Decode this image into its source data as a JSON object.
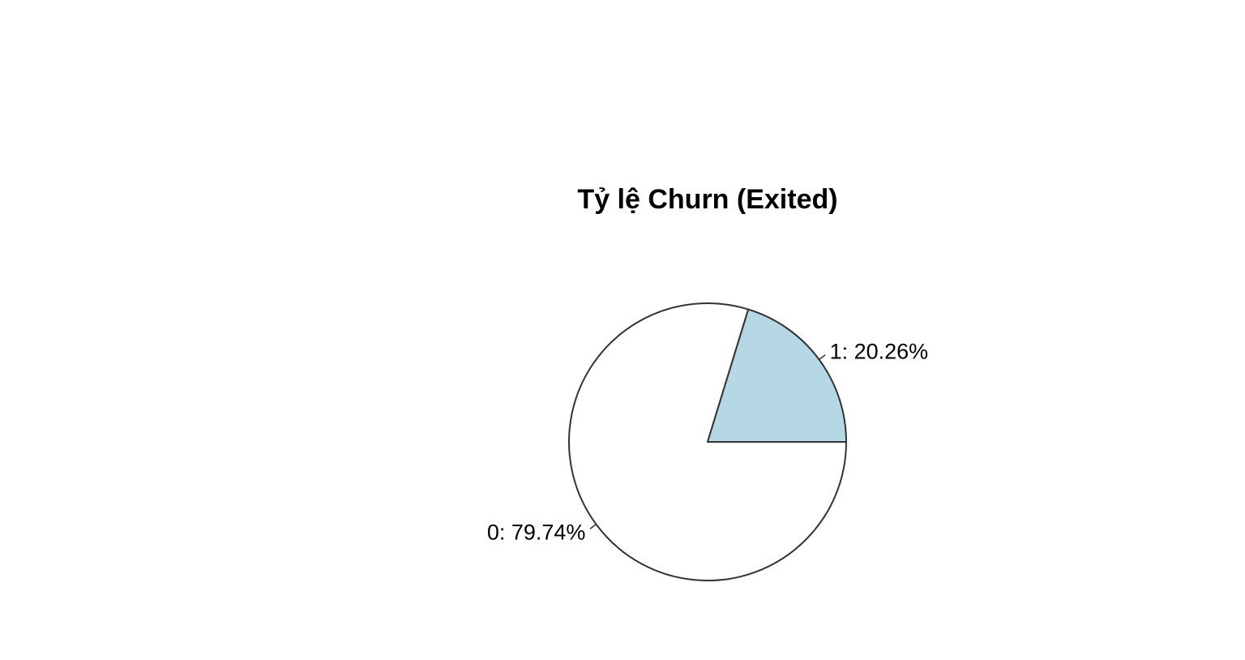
{
  "chart_data": {
    "type": "pie",
    "title": "Tỷ lệ Churn (Exited)",
    "slices": [
      {
        "label": "0: 79.74%",
        "category": "0",
        "value": 79.74,
        "color": "#ffffff"
      },
      {
        "label": "1: 20.26%",
        "category": "1",
        "value": 20.26,
        "color": "#b6d8e4"
      }
    ],
    "start_angle_deg": 0,
    "direction": "clockwise",
    "border_color": "#333333",
    "legend": "none"
  }
}
